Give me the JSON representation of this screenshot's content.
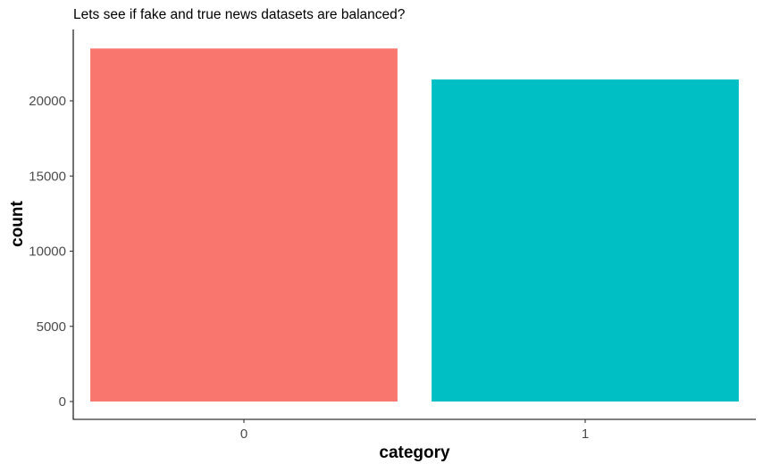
{
  "chart_data": {
    "type": "bar",
    "title": "Lets see if fake and true news datasets are balanced?",
    "xlabel": "category",
    "ylabel": "count",
    "categories": [
      "0",
      "1"
    ],
    "values": [
      23481,
      21417
    ],
    "colors": [
      "#F8766D",
      "#00BFC4"
    ],
    "ylim": [
      0,
      24600
    ],
    "yticks": [
      0,
      5000,
      10000,
      15000,
      20000
    ],
    "ytick_labels": [
      "0",
      "5000",
      "10000",
      "15000",
      "20000"
    ],
    "grid": false,
    "legend": "none"
  }
}
